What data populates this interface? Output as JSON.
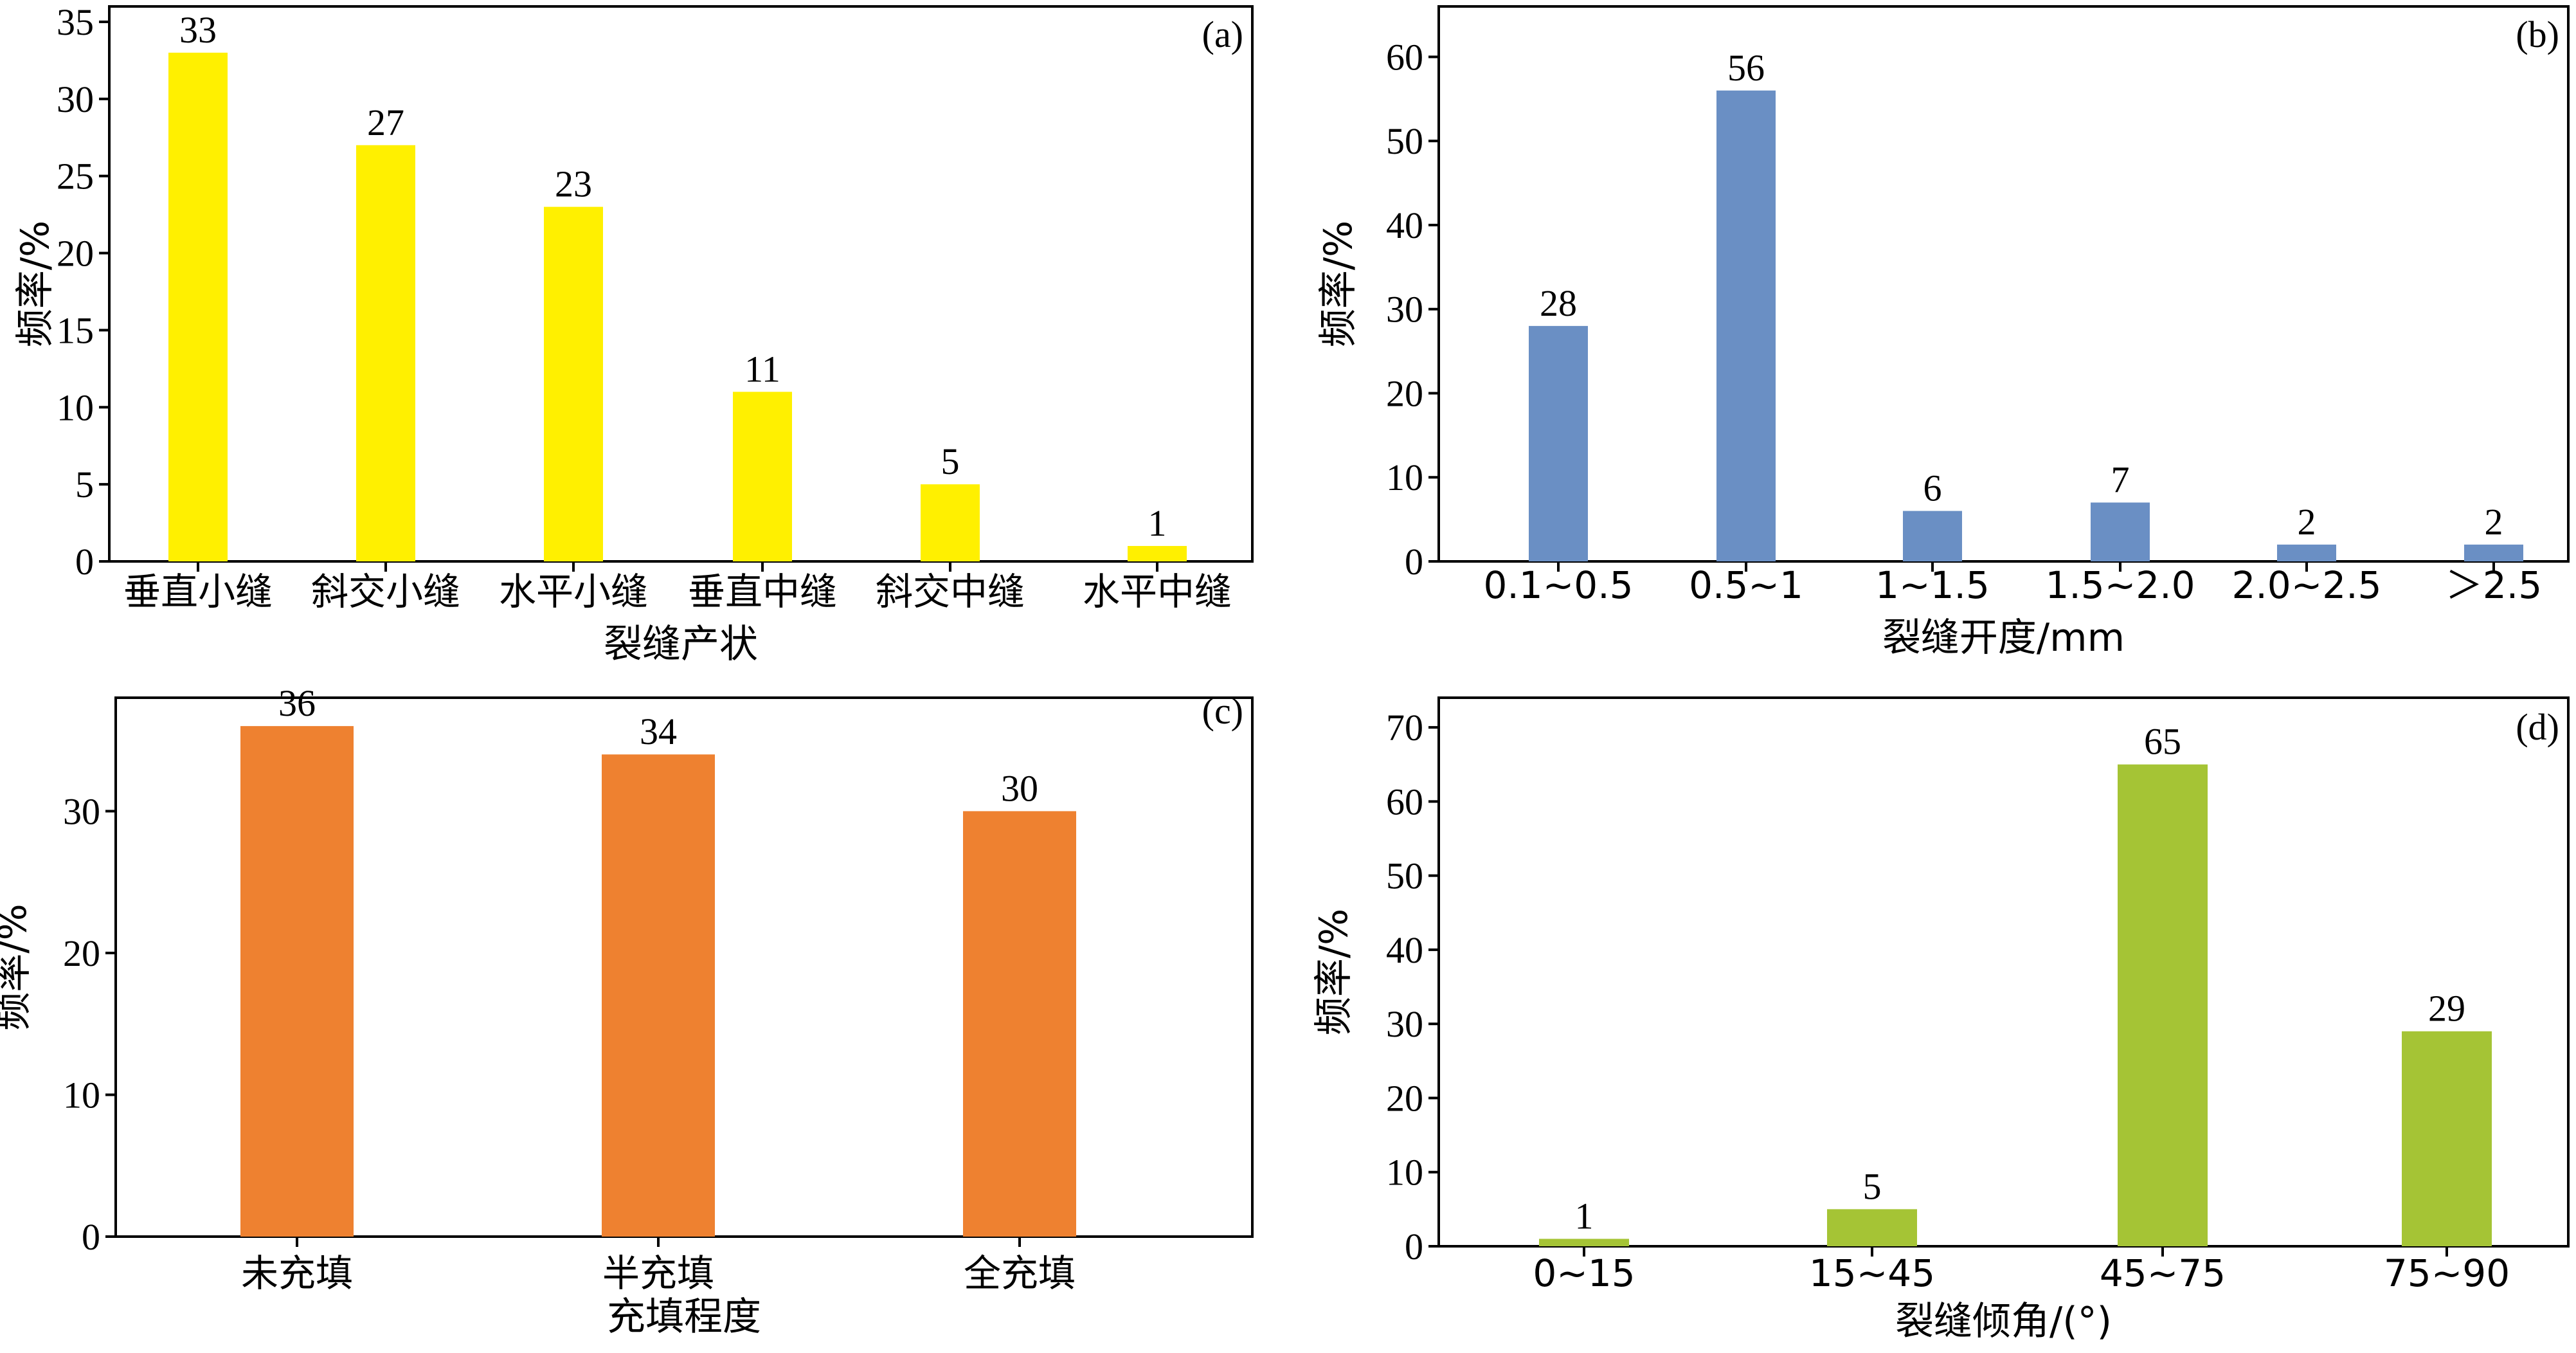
{
  "chart_data": [
    {
      "type": "bar",
      "panel": "(a)",
      "xlabel": "裂缝产状",
      "ylabel": "频率/%",
      "ylim": [
        0,
        36
      ],
      "yticks": [
        0,
        5,
        10,
        15,
        20,
        25,
        30,
        35
      ],
      "categories": [
        "垂直小缝",
        "斜交小缝",
        "水平小缝",
        "垂直中缝",
        "斜交中缝",
        "水平中缝"
      ],
      "values": [
        33,
        27,
        23,
        11,
        5,
        1
      ],
      "labels": [
        "33",
        "27",
        "23",
        "11",
        "5",
        "1"
      ],
      "color": "#fff000"
    },
    {
      "type": "bar",
      "panel": "(b)",
      "xlabel": "裂缝开度/mm",
      "ylabel": "频率/%",
      "ylim": [
        0,
        66
      ],
      "yticks": [
        0,
        10,
        20,
        30,
        40,
        50,
        60
      ],
      "categories": [
        "0.1~0.5",
        "0.5~1",
        "1~1.5",
        "1.5~2.0",
        "2.0~2.5",
        "＞2.5"
      ],
      "values": [
        28,
        56,
        6,
        7,
        2,
        2
      ],
      "labels": [
        "28",
        "56",
        "6",
        "7",
        "2",
        "2"
      ],
      "color": "#6a8fc4"
    },
    {
      "type": "bar",
      "panel": "(c)",
      "xlabel": "充填程度",
      "ylabel": "频率/%",
      "ylim": [
        0,
        38
      ],
      "yticks": [
        0,
        10,
        20,
        30
      ],
      "categories": [
        "未充填",
        "半充填",
        "全充填"
      ],
      "values": [
        36,
        34,
        30
      ],
      "labels": [
        "36",
        "34",
        "30"
      ],
      "color": "#ee8130"
    },
    {
      "type": "bar",
      "panel": "(d)",
      "xlabel": "裂缝倾角/(°)",
      "ylabel": "频率/%",
      "ylim": [
        0,
        74
      ],
      "yticks": [
        0,
        10,
        20,
        30,
        40,
        50,
        60,
        70
      ],
      "categories": [
        "0~15",
        "15~45",
        "45~75",
        "75~90"
      ],
      "values": [
        1,
        5,
        65,
        29
      ],
      "labels": [
        "1",
        "5",
        "65",
        "29"
      ],
      "color": "#a5c435"
    }
  ]
}
